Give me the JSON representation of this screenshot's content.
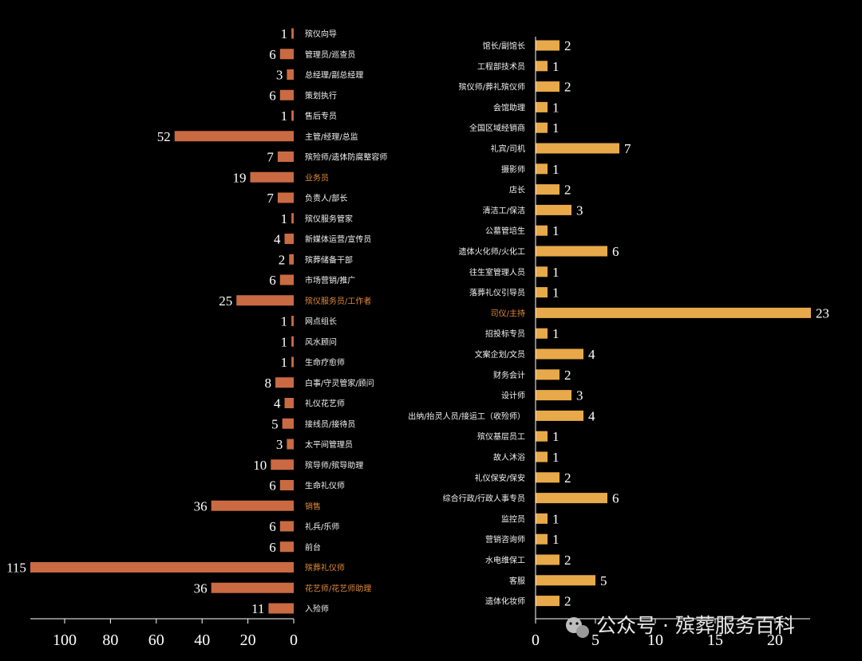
{
  "chart_data": [
    {
      "type": "bar",
      "orientation": "horizontal-reversed",
      "bar_color": "#c96a43",
      "highlight_label_color": "#e08a3c",
      "xlim": [
        0,
        120
      ],
      "xticks": [
        100,
        80,
        60,
        40,
        20,
        0
      ],
      "categories": [
        "殡仪向导",
        "管理员/巡查员",
        "总经理/副总经理",
        "策划执行",
        "售后专员",
        "主管/经理/总监",
        "殡殓师/遗体防腐整容师",
        "业务员",
        "负责人/部长",
        "殡仪服务管家",
        "新媒体运营/宣传员",
        "殡葬储备干部",
        "市场营销/推广",
        "殡仪服务员/工作者",
        "网点组长",
        "风水顾问",
        "生命疗愈师",
        "白事/守灵管家/顾问",
        "礼仪花艺师",
        "接线员/接待员",
        "太平间管理员",
        "殡导师/殡导助理",
        "生命礼仪师",
        "销售",
        "礼兵/乐师",
        "前台",
        "殡葬礼仪师",
        "花艺师/花艺师助理",
        "入殓师"
      ],
      "values": [
        1,
        6,
        3,
        6,
        1,
        52,
        7,
        19,
        7,
        1,
        4,
        2,
        6,
        25,
        1,
        1,
        1,
        8,
        4,
        5,
        3,
        10,
        6,
        36,
        6,
        6,
        115,
        36,
        11
      ],
      "highlighted": [
        "业务员",
        "殡仪服务员/工作者",
        "销售",
        "殡葬礼仪师",
        "花艺师/花艺师助理"
      ]
    },
    {
      "type": "bar",
      "orientation": "horizontal",
      "bar_color": "#e8a94a",
      "highlight_label_color": "#e08a3c",
      "xlim": [
        0,
        23
      ],
      "xticks": [
        0,
        5,
        10,
        15,
        20
      ],
      "categories": [
        "馆长/副馆长",
        "工程部技术员",
        "殡仪师/葬礼殡仪师",
        "会馆助理",
        "全国区域经销商",
        "礼宾/司机",
        "摄影师",
        "店长",
        "清洁工/保洁",
        "公墓管培生",
        "遗体火化师/火化工",
        "往生室管理人员",
        "落葬礼仪引导员",
        "司仪/主持",
        "招投标专员",
        "文案企划/文员",
        "财务会计",
        "设计师",
        "出纳/抬灵人员/接运工（收殓师）",
        "殡仪基层员工",
        "故人沐浴",
        "礼仪保安/保安",
        "综合行政/行政人事专员",
        "监控员",
        "营销咨询师",
        "水电维保工",
        "客服",
        "遗体化妆师"
      ],
      "values": [
        2,
        1,
        2,
        1,
        1,
        7,
        1,
        2,
        3,
        1,
        6,
        1,
        1,
        23,
        1,
        4,
        2,
        3,
        4,
        1,
        1,
        2,
        6,
        1,
        1,
        2,
        5,
        2
      ],
      "highlighted": [
        "司仪/主持"
      ]
    }
  ],
  "watermark": {
    "text": "公众号 · 殡葬服务百科",
    "icon": "wechat-icon"
  }
}
